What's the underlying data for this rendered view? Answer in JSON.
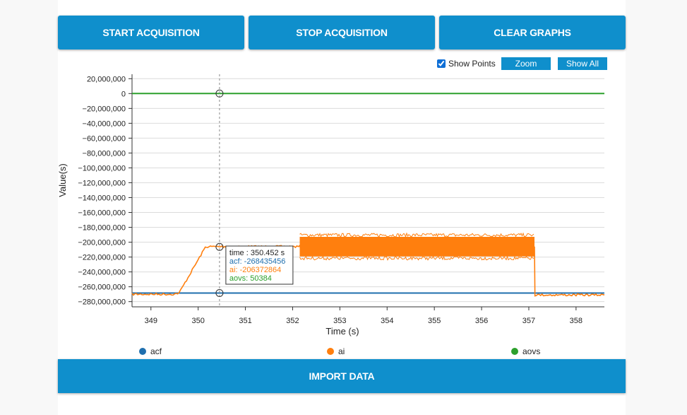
{
  "buttons": {
    "start": "START ACQUISITION",
    "stop": "STOP ACQUISITION",
    "clear": "CLEAR GRAPHS",
    "import": "IMPORT DATA"
  },
  "controls": {
    "show_points_label": "Show Points",
    "show_points_checked": true,
    "zoom_label": "Zoom",
    "show_all_label": "Show All"
  },
  "colors": {
    "button": "#0f8fcc",
    "acf": "#1f6fae",
    "ai": "#ff7f0e",
    "aovs": "#2ca02c"
  },
  "chart_data": {
    "type": "line",
    "xlabel": "Time (s)",
    "ylabel": "Value(s)",
    "xlim": [
      348.6,
      358.6
    ],
    "ylim": [
      -287000000,
      26000000
    ],
    "x_ticks": [
      349,
      350,
      351,
      352,
      353,
      354,
      355,
      356,
      357,
      358
    ],
    "y_ticks": [
      20000000,
      0,
      -20000000,
      -40000000,
      -60000000,
      -80000000,
      -100000000,
      -120000000,
      -140000000,
      -160000000,
      -180000000,
      -200000000,
      -220000000,
      -240000000,
      -260000000,
      -280000000
    ],
    "y_tick_labels": [
      "20,000,000",
      "0",
      "−20,000,000",
      "−40,000,000",
      "−60,000,000",
      "−80,000,000",
      "−100,000,000",
      "−120,000,000",
      "−140,000,000",
      "−160,000,000",
      "−180,000,000",
      "−200,000,000",
      "−220,000,000",
      "−240,000,000",
      "−260,000,000",
      "−280,000,000"
    ],
    "series": [
      {
        "name": "acf",
        "x": [
          348.6,
          358.6
        ],
        "values": [
          -268435456,
          -268435456
        ]
      },
      {
        "name": "ai",
        "x": [
          348.6,
          349.5,
          349.6,
          350.15,
          350.2,
          352.15,
          352.16,
          357.12,
          357.13,
          358.6
        ],
        "values": [
          -270000000,
          -270000000,
          -268000000,
          -207000000,
          -206000000,
          -206000000,
          -206000000,
          -206000000,
          -271000000,
          -271000000
        ],
        "noise_band": {
          "x_start": 352.15,
          "x_end": 357.12,
          "upper": -189000000,
          "lower": -223000000
        }
      },
      {
        "name": "aovs",
        "x": [
          348.6,
          358.6
        ],
        "values": [
          50384,
          50384
        ]
      }
    ],
    "cursor": {
      "time": 350.452,
      "time_label": "time : 350.452 s",
      "acf_label": "acf: -268435456",
      "ai_label": "ai: -206372864",
      "aovs_label": "aovs: 50384",
      "acf": -268435456,
      "ai": -206372864,
      "aovs": 50384
    },
    "legend": [
      "acf",
      "ai",
      "aovs"
    ]
  }
}
